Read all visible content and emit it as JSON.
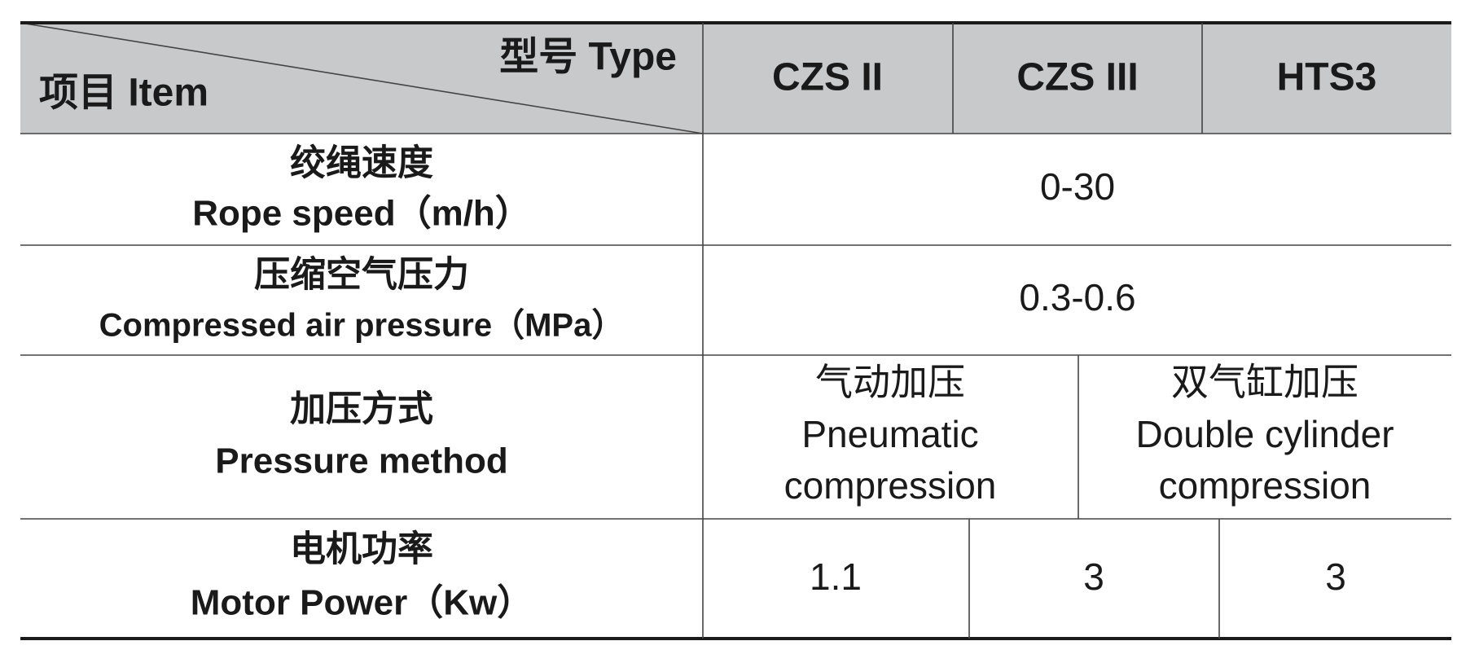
{
  "header": {
    "type_label": "型号 Type",
    "item_label": "项目 Item",
    "columns": [
      "CZS II",
      "CZS III",
      "HTS3"
    ]
  },
  "rows": [
    {
      "label_zh": "绞绳速度",
      "label_en": "Rope speed（m/h）",
      "cells": [
        "0-30"
      ]
    },
    {
      "label_zh": "压缩空气压力",
      "label_en": "Compressed air pressure（MPa）",
      "cells": [
        "0.3-0.6"
      ]
    },
    {
      "label_zh": "加压方式",
      "label_en": "Pressure method",
      "cells": [
        {
          "zh": "气动加压",
          "en": [
            "Pneumatic",
            "compression"
          ]
        },
        {
          "zh": "双气缸加压",
          "en": [
            "Double cylinder",
            "compression"
          ]
        }
      ]
    },
    {
      "label_zh": "电机功率",
      "label_en": "Motor Power（Kw）",
      "cells": [
        "1.1",
        "3",
        "3"
      ]
    }
  ]
}
